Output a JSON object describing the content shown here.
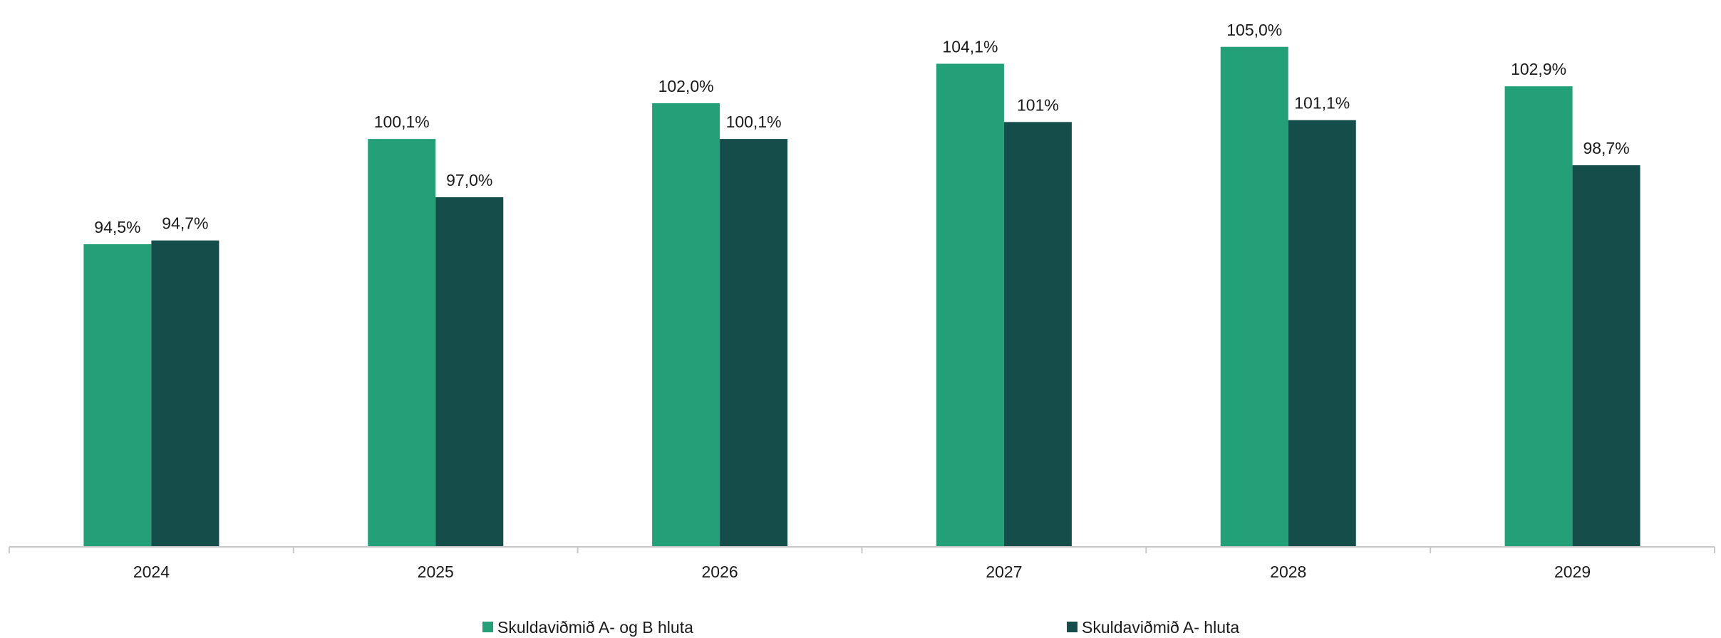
{
  "chart_data": {
    "type": "bar",
    "title": "",
    "xlabel": "",
    "ylabel": "",
    "categories": [
      "2024",
      "2025",
      "2026",
      "2027",
      "2028",
      "2029"
    ],
    "series": [
      {
        "name": "Skuldaviðmið A- og B hluta",
        "color": "#23a077",
        "values": [
          94.5,
          100.1,
          102.0,
          104.1,
          105.0,
          102.9
        ],
        "labels": [
          "94,5%",
          "100,1%",
          "102,0%",
          "104,1%",
          "105,0%",
          "102,9%"
        ]
      },
      {
        "name": "Skuldaviðmið A- hluta",
        "color": "#154d4b",
        "values": [
          94.7,
          97.0,
          100.1,
          101.0,
          101.1,
          98.7
        ],
        "labels": [
          "94,7%",
          "97,0%",
          "100,1%",
          "101%",
          "101,1%",
          "98,7%"
        ]
      }
    ],
    "ylim": [
      78.4,
      105.9
    ],
    "grid": false,
    "legend_position": "bottom"
  }
}
